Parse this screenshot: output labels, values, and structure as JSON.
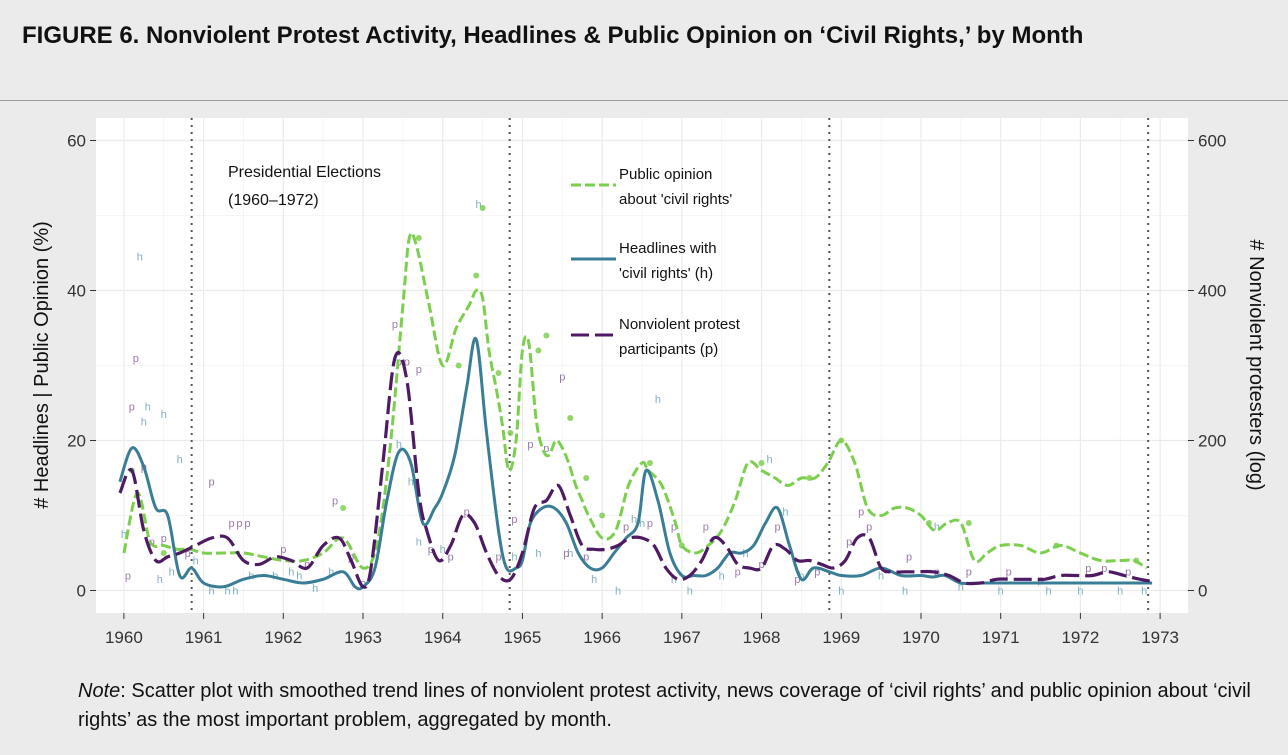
{
  "title": "FIGURE 6. Nonviolent Protest Activity, Headlines & Public Opinion on ‘Civil Rights,’ by Month",
  "note": {
    "label": "Note",
    "text": ": Scatter plot with smoothed trend lines of nonviolent protest activity, news coverage of ‘civil rights’ and public opinion about ‘civil rights’ as the most important problem, aggregated by month."
  },
  "colors": {
    "opinion": "#7ccf4e",
    "headlines": "#3a7d96",
    "protest": "#4e1a63",
    "vline": "#555555"
  },
  "chart_data": {
    "type": "line",
    "xlabel": "",
    "ylabel": "# Headlines | Public Opinion (%)",
    "y2label": "# Nonviolent protesters (log)",
    "xlim": [
      1959.65,
      1973.35
    ],
    "ylim": [
      -3,
      63
    ],
    "y2lim": [
      -30,
      630
    ],
    "x_ticks": [
      1960,
      1961,
      1962,
      1963,
      1964,
      1965,
      1966,
      1967,
      1968,
      1969,
      1970,
      1971,
      1972,
      1973
    ],
    "y_ticks": [
      0,
      20,
      40,
      60
    ],
    "y2_ticks": [
      0,
      200,
      400,
      600
    ],
    "grid": true,
    "annotation": {
      "label": "Presidential Elections",
      "sub": "(1960–1972)",
      "x": [
        1960.85,
        1964.84,
        1968.85,
        1972.85
      ]
    },
    "legend": [
      {
        "label": "Public opinion",
        "sub": "about 'civil rights'",
        "series": "opinion"
      },
      {
        "label": "Headlines with",
        "sub": "'civil rights' (h)",
        "series": "headlines"
      },
      {
        "label": "Nonviolent protest",
        "sub": "participants (p)",
        "series": "protest"
      }
    ],
    "series": [
      {
        "key": "opinion",
        "axis": "left",
        "x": [
          1960.0,
          1960.17,
          1960.33,
          1960.5,
          1960.67,
          1960.83,
          1961.0,
          1961.25,
          1961.5,
          1961.75,
          1962.0,
          1962.25,
          1962.5,
          1962.75,
          1963.0,
          1963.17,
          1963.33,
          1963.5,
          1963.58,
          1963.67,
          1963.83,
          1964.0,
          1964.17,
          1964.33,
          1964.42,
          1964.5,
          1964.58,
          1964.67,
          1964.75,
          1964.83,
          1964.92,
          1965.0,
          1965.08,
          1965.17,
          1965.25,
          1965.33,
          1965.42,
          1965.5,
          1965.58,
          1965.67,
          1965.75,
          1965.83,
          1966.0,
          1966.17,
          1966.33,
          1966.5,
          1966.58,
          1966.75,
          1966.92,
          1967.0,
          1967.17,
          1967.33,
          1967.5,
          1967.67,
          1967.83,
          1968.0,
          1968.17,
          1968.33,
          1968.5,
          1968.67,
          1968.83,
          1969.0,
          1969.17,
          1969.33,
          1969.5,
          1969.67,
          1969.83,
          1970.0,
          1970.17,
          1970.33,
          1970.5,
          1970.67,
          1970.83,
          1971.0,
          1971.25,
          1971.5,
          1971.75,
          1972.0,
          1972.25,
          1972.5,
          1972.67,
          1972.83
        ],
        "y": [
          5,
          13,
          6.5,
          6,
          5.5,
          5.5,
          5,
          5,
          5,
          4.5,
          4,
          4,
          5,
          7,
          3,
          6,
          18,
          38,
          47,
          46,
          38,
          30,
          35,
          38,
          40,
          39,
          32,
          27,
          22,
          16,
          20,
          32,
          33,
          23,
          19,
          18,
          20,
          19,
          17,
          14,
          12,
          10,
          7,
          8,
          14,
          17,
          16,
          14,
          9,
          6,
          5,
          6,
          8,
          12,
          17,
          16,
          15,
          14,
          15,
          15,
          17,
          20,
          17,
          11,
          10,
          11,
          11,
          10,
          8,
          9,
          9,
          4,
          5,
          6,
          6,
          5,
          6,
          5,
          4,
          4,
          4,
          3
        ]
      },
      {
        "key": "headlines",
        "axis": "left",
        "x": [
          1959.95,
          1960.1,
          1960.25,
          1960.4,
          1960.55,
          1960.7,
          1960.85,
          1961.0,
          1961.25,
          1961.5,
          1961.75,
          1962.0,
          1962.25,
          1962.5,
          1962.75,
          1962.9,
          1963.0,
          1963.15,
          1963.3,
          1963.45,
          1963.6,
          1963.75,
          1963.9,
          1964.0,
          1964.15,
          1964.3,
          1964.42,
          1964.55,
          1964.7,
          1964.8,
          1964.92,
          1965.0,
          1965.1,
          1965.25,
          1965.4,
          1965.55,
          1965.7,
          1965.85,
          1966.0,
          1966.15,
          1966.3,
          1966.45,
          1966.55,
          1966.7,
          1966.85,
          1967.0,
          1967.15,
          1967.3,
          1967.45,
          1967.6,
          1967.75,
          1967.9,
          1968.05,
          1968.2,
          1968.35,
          1968.5,
          1968.65,
          1968.85,
          1969.0,
          1969.25,
          1969.5,
          1969.75,
          1970.0,
          1970.15,
          1970.3,
          1970.5,
          1970.75,
          1971.0,
          1971.25,
          1971.5,
          1971.75,
          1972.0,
          1972.25,
          1972.5,
          1972.75,
          1972.9
        ],
        "y": [
          14.5,
          19,
          16.5,
          11,
          10,
          2,
          3,
          1,
          0.5,
          1.5,
          2,
          1.5,
          1,
          1.5,
          2.5,
          0.5,
          0.5,
          3,
          12,
          18.5,
          17,
          9,
          11,
          13,
          18,
          27,
          33.5,
          21,
          8,
          3,
          3,
          4,
          9,
          11,
          11,
          9,
          5,
          3,
          3,
          5,
          7,
          9,
          16,
          12,
          5,
          2,
          2,
          2,
          3,
          5,
          5,
          6,
          9,
          11,
          6,
          1.5,
          3,
          2.5,
          2,
          2,
          3,
          2,
          2,
          1.8,
          2,
          1,
          1,
          1,
          1,
          1,
          1,
          1,
          1,
          1,
          1,
          1
        ]
      },
      {
        "key": "protest",
        "axis": "right",
        "x": [
          1959.95,
          1960.1,
          1960.25,
          1960.4,
          1960.55,
          1960.7,
          1960.9,
          1961.1,
          1961.3,
          1961.5,
          1961.7,
          1961.9,
          1962.1,
          1962.3,
          1962.5,
          1962.7,
          1962.85,
          1963.0,
          1963.1,
          1963.25,
          1963.4,
          1963.55,
          1963.7,
          1963.8,
          1963.95,
          1964.1,
          1964.25,
          1964.4,
          1964.55,
          1964.7,
          1964.85,
          1965.0,
          1965.15,
          1965.3,
          1965.45,
          1965.6,
          1965.75,
          1965.9,
          1966.05,
          1966.2,
          1966.35,
          1966.5,
          1966.65,
          1966.8,
          1966.95,
          1967.1,
          1967.25,
          1967.4,
          1967.55,
          1967.7,
          1967.85,
          1968.0,
          1968.15,
          1968.3,
          1968.45,
          1968.6,
          1968.75,
          1968.9,
          1969.05,
          1969.2,
          1969.35,
          1969.5,
          1969.65,
          1969.8,
          1969.95,
          1970.15,
          1970.35,
          1970.55,
          1970.75,
          1970.95,
          1971.15,
          1971.35,
          1971.55,
          1971.75,
          1971.95,
          1972.15,
          1972.35,
          1972.55,
          1972.75,
          1972.9
        ],
        "y": [
          130,
          160,
          80,
          40,
          45,
          50,
          60,
          70,
          70,
          40,
          35,
          45,
          40,
          30,
          60,
          70,
          40,
          5,
          30,
          170,
          310,
          280,
          130,
          80,
          40,
          60,
          100,
          90,
          50,
          20,
          15,
          50,
          110,
          120,
          140,
          100,
          60,
          55,
          55,
          60,
          70,
          70,
          60,
          30,
          15,
          20,
          40,
          70,
          60,
          35,
          30,
          30,
          60,
          55,
          40,
          40,
          35,
          30,
          40,
          70,
          70,
          30,
          25,
          25,
          25,
          25,
          20,
          10,
          10,
          15,
          15,
          15,
          15,
          20,
          20,
          20,
          25,
          20,
          15,
          12
        ]
      }
    ],
    "points": [
      {
        "series": "headlines",
        "x": 1960.2,
        "y": 44
      },
      {
        "series": "headlines",
        "x": 1960.25,
        "y": 22
      },
      {
        "series": "headlines",
        "x": 1960.3,
        "y": 24
      },
      {
        "series": "headlines",
        "x": 1960.5,
        "y": 23
      },
      {
        "series": "headlines",
        "x": 1960.7,
        "y": 17
      },
      {
        "series": "headlines",
        "x": 1960.0,
        "y": 7
      },
      {
        "series": "headlines",
        "x": 1960.45,
        "y": 1
      },
      {
        "series": "headlines",
        "x": 1960.6,
        "y": 2
      },
      {
        "series": "headlines",
        "x": 1960.9,
        "y": 3.5
      },
      {
        "series": "headlines",
        "x": 1961.1,
        "y": -0.5
      },
      {
        "series": "headlines",
        "x": 1961.3,
        "y": -0.5
      },
      {
        "series": "headlines",
        "x": 1961.4,
        "y": -0.5
      },
      {
        "series": "headlines",
        "x": 1961.6,
        "y": 1.5
      },
      {
        "series": "headlines",
        "x": 1961.9,
        "y": 1.5
      },
      {
        "series": "headlines",
        "x": 1962.1,
        "y": 2
      },
      {
        "series": "headlines",
        "x": 1962.2,
        "y": 1.5
      },
      {
        "series": "headlines",
        "x": 1962.4,
        "y": -0.2
      },
      {
        "series": "headlines",
        "x": 1962.6,
        "y": 2
      },
      {
        "series": "headlines",
        "x": 1963.45,
        "y": 19
      },
      {
        "series": "headlines",
        "x": 1963.6,
        "y": 14
      },
      {
        "series": "headlines",
        "x": 1963.7,
        "y": 6
      },
      {
        "series": "headlines",
        "x": 1964.0,
        "y": 5
      },
      {
        "series": "headlines",
        "x": 1964.45,
        "y": 51
      },
      {
        "series": "headlines",
        "x": 1964.9,
        "y": 4
      },
      {
        "series": "headlines",
        "x": 1965.2,
        "y": 4.5
      },
      {
        "series": "headlines",
        "x": 1965.6,
        "y": 4.5
      },
      {
        "series": "headlines",
        "x": 1965.9,
        "y": 1
      },
      {
        "series": "headlines",
        "x": 1966.2,
        "y": -0.5
      },
      {
        "series": "headlines",
        "x": 1966.4,
        "y": 9
      },
      {
        "series": "headlines",
        "x": 1966.5,
        "y": 8.5
      },
      {
        "series": "headlines",
        "x": 1966.7,
        "y": 25
      },
      {
        "series": "headlines",
        "x": 1966.9,
        "y": 1
      },
      {
        "series": "headlines",
        "x": 1967.1,
        "y": -0.5
      },
      {
        "series": "headlines",
        "x": 1967.5,
        "y": 1.5
      },
      {
        "series": "headlines",
        "x": 1967.8,
        "y": 4.5
      },
      {
        "series": "headlines",
        "x": 1968.1,
        "y": 17
      },
      {
        "series": "headlines",
        "x": 1968.3,
        "y": 10
      },
      {
        "series": "headlines",
        "x": 1968.5,
        "y": 1.5
      },
      {
        "series": "headlines",
        "x": 1969.0,
        "y": -0.5
      },
      {
        "series": "headlines",
        "x": 1969.5,
        "y": 1.5
      },
      {
        "series": "headlines",
        "x": 1969.8,
        "y": -0.5
      },
      {
        "series": "headlines",
        "x": 1970.2,
        "y": 8
      },
      {
        "series": "headlines",
        "x": 1970.5,
        "y": 0
      },
      {
        "series": "headlines",
        "x": 1971.0,
        "y": -0.5
      },
      {
        "series": "headlines",
        "x": 1971.6,
        "y": -0.5
      },
      {
        "series": "headlines",
        "x": 1972.0,
        "y": -0.5
      },
      {
        "series": "headlines",
        "x": 1972.5,
        "y": -0.5
      },
      {
        "series": "headlines",
        "x": 1972.8,
        "y": -0.5
      },
      {
        "series": "protest",
        "x": 1960.05,
        "y": 15
      },
      {
        "series": "protest",
        "x": 1960.1,
        "y": 240
      },
      {
        "series": "protest",
        "x": 1960.15,
        "y": 305
      },
      {
        "series": "protest",
        "x": 1960.25,
        "y": 160
      },
      {
        "series": "protest",
        "x": 1960.35,
        "y": 60
      },
      {
        "series": "protest",
        "x": 1960.5,
        "y": 65
      },
      {
        "series": "protest",
        "x": 1960.8,
        "y": 45
      },
      {
        "series": "protest",
        "x": 1961.1,
        "y": 140
      },
      {
        "series": "protest",
        "x": 1961.35,
        "y": 85
      },
      {
        "series": "protest",
        "x": 1961.45,
        "y": 85
      },
      {
        "series": "protest",
        "x": 1961.55,
        "y": 85
      },
      {
        "series": "protest",
        "x": 1962.0,
        "y": 50
      },
      {
        "series": "protest",
        "x": 1962.3,
        "y": 30
      },
      {
        "series": "protest",
        "x": 1962.65,
        "y": 115
      },
      {
        "series": "protest",
        "x": 1962.85,
        "y": 40
      },
      {
        "series": "protest",
        "x": 1963.0,
        "y": 5
      },
      {
        "series": "protest",
        "x": 1963.4,
        "y": 350
      },
      {
        "series": "protest",
        "x": 1963.45,
        "y": 300
      },
      {
        "series": "protest",
        "x": 1963.55,
        "y": 300
      },
      {
        "series": "protest",
        "x": 1963.7,
        "y": 290
      },
      {
        "series": "protest",
        "x": 1963.85,
        "y": 50
      },
      {
        "series": "protest",
        "x": 1964.1,
        "y": 40
      },
      {
        "series": "protest",
        "x": 1964.3,
        "y": 100
      },
      {
        "series": "protest",
        "x": 1964.7,
        "y": 40
      },
      {
        "series": "protest",
        "x": 1964.9,
        "y": 90
      },
      {
        "series": "protest",
        "x": 1965.1,
        "y": 190
      },
      {
        "series": "protest",
        "x": 1965.3,
        "y": 185
      },
      {
        "series": "protest",
        "x": 1965.5,
        "y": 280
      },
      {
        "series": "protest",
        "x": 1965.55,
        "y": 45
      },
      {
        "series": "protest",
        "x": 1965.8,
        "y": 40
      },
      {
        "series": "protest",
        "x": 1966.3,
        "y": 80
      },
      {
        "series": "protest",
        "x": 1966.6,
        "y": 85
      },
      {
        "series": "protest",
        "x": 1966.9,
        "y": 80
      },
      {
        "series": "protest",
        "x": 1967.3,
        "y": 80
      },
      {
        "series": "protest",
        "x": 1967.7,
        "y": 20
      },
      {
        "series": "protest",
        "x": 1968.0,
        "y": 30
      },
      {
        "series": "protest",
        "x": 1968.2,
        "y": 80
      },
      {
        "series": "protest",
        "x": 1968.45,
        "y": 10
      },
      {
        "series": "protest",
        "x": 1968.7,
        "y": 20
      },
      {
        "series": "protest",
        "x": 1969.1,
        "y": 60
      },
      {
        "series": "protest",
        "x": 1969.25,
        "y": 100
      },
      {
        "series": "protest",
        "x": 1969.35,
        "y": 80
      },
      {
        "series": "protest",
        "x": 1969.85,
        "y": 40
      },
      {
        "series": "protest",
        "x": 1970.2,
        "y": 20
      },
      {
        "series": "protest",
        "x": 1970.6,
        "y": 20
      },
      {
        "series": "protest",
        "x": 1971.1,
        "y": 20
      },
      {
        "series": "protest",
        "x": 1971.5,
        "y": 10
      },
      {
        "series": "protest",
        "x": 1972.1,
        "y": 25
      },
      {
        "series": "protest",
        "x": 1972.3,
        "y": 25
      },
      {
        "series": "protest",
        "x": 1972.6,
        "y": 20
      },
      {
        "series": "opinion",
        "x": 1960.1,
        "y": 16
      },
      {
        "series": "opinion",
        "x": 1960.5,
        "y": 5
      },
      {
        "series": "opinion",
        "x": 1962.75,
        "y": 11
      },
      {
        "series": "opinion",
        "x": 1963.7,
        "y": 47
      },
      {
        "series": "opinion",
        "x": 1964.2,
        "y": 30
      },
      {
        "series": "opinion",
        "x": 1964.42,
        "y": 42
      },
      {
        "series": "opinion",
        "x": 1964.5,
        "y": 51
      },
      {
        "series": "opinion",
        "x": 1964.7,
        "y": 29
      },
      {
        "series": "opinion",
        "x": 1964.85,
        "y": 21
      },
      {
        "series": "opinion",
        "x": 1965.2,
        "y": 32
      },
      {
        "series": "opinion",
        "x": 1965.3,
        "y": 34
      },
      {
        "series": "opinion",
        "x": 1965.6,
        "y": 23
      },
      {
        "series": "opinion",
        "x": 1965.8,
        "y": 15
      },
      {
        "series": "opinion",
        "x": 1966.0,
        "y": 10
      },
      {
        "series": "opinion",
        "x": 1966.6,
        "y": 17
      },
      {
        "series": "opinion",
        "x": 1967.0,
        "y": 6
      },
      {
        "series": "opinion",
        "x": 1968.0,
        "y": 17
      },
      {
        "series": "opinion",
        "x": 1968.6,
        "y": 15
      },
      {
        "series": "opinion",
        "x": 1969.0,
        "y": 20
      },
      {
        "series": "opinion",
        "x": 1970.1,
        "y": 9
      },
      {
        "series": "opinion",
        "x": 1970.6,
        "y": 9
      },
      {
        "series": "opinion",
        "x": 1971.7,
        "y": 6
      },
      {
        "series": "opinion",
        "x": 1972.7,
        "y": 4
      }
    ]
  }
}
